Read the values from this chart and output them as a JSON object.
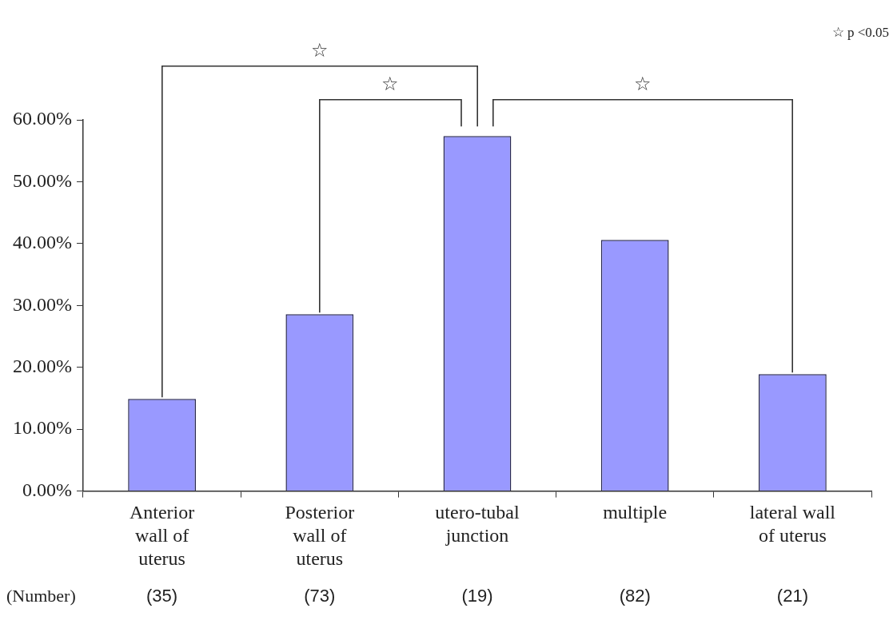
{
  "chart_data": {
    "type": "bar",
    "categories": [
      "Anterior wall of uterus",
      "Posterior wall of uterus",
      "utero-tubal junction",
      "multiple",
      "lateral wall of uterus"
    ],
    "values": [
      14.9,
      28.6,
      57.4,
      40.6,
      18.9
    ],
    "color": "#9999ff",
    "ylim": [
      0,
      60
    ],
    "yticks": [
      {
        "value": 0,
        "label": "0.00%"
      },
      {
        "value": 10,
        "label": "10.00%"
      },
      {
        "value": 20,
        "label": "20.00%"
      },
      {
        "value": 30,
        "label": "30.00%"
      },
      {
        "value": 40,
        "label": "40.00%"
      },
      {
        "value": 50,
        "label": "50.00%"
      },
      {
        "value": 60,
        "label": "60.00%"
      }
    ],
    "grid": false,
    "legend": false,
    "annotations": [
      "☆ p <0.05",
      "☆",
      "☆",
      "☆",
      "(Number)",
      "(35)",
      "(73)",
      "(19)",
      "(82)",
      "(21)"
    ]
  }
}
